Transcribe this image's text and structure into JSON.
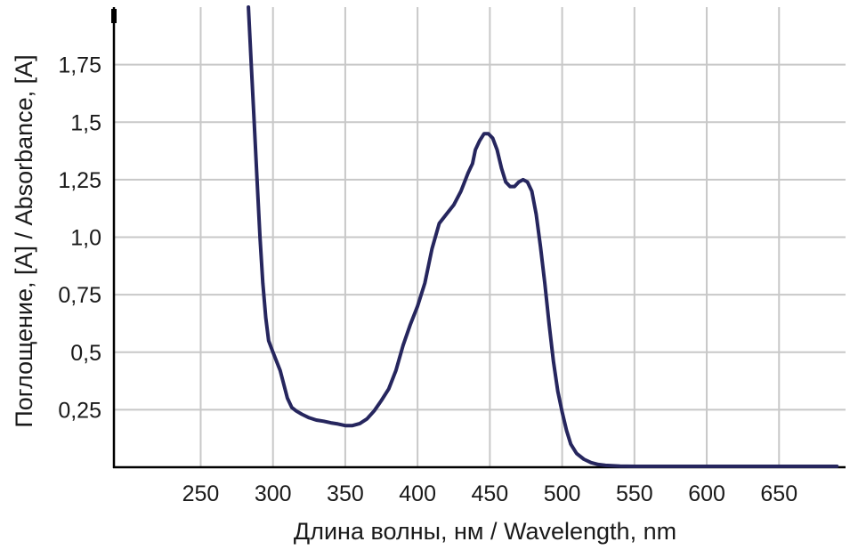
{
  "chart_data": {
    "type": "line",
    "title": "",
    "xlabel": "Длина волны, нм / Wavelength, nm",
    "ylabel": "Поглощение, [A] / Absorbance, [A]",
    "xlim": [
      190,
      696
    ],
    "ylim": [
      0,
      2
    ],
    "x_ticks": [
      250,
      300,
      350,
      400,
      450,
      500,
      550,
      600,
      650
    ],
    "x_tick_labels": [
      "250",
      "300",
      "350",
      "400",
      "450",
      "500",
      "550",
      "600",
      "650"
    ],
    "y_ticks": [
      0.25,
      0.5,
      0.75,
      1.0,
      1.25,
      1.5,
      1.75
    ],
    "y_tick_labels": [
      "0,25",
      "0,5",
      "0,75",
      "1,0",
      "1,25",
      "1,5",
      "1,75"
    ],
    "grid": true,
    "line_color": "#26265e",
    "series": [
      {
        "x": [
          283,
          285,
          287,
          289,
          291,
          293,
          295,
          297,
          300,
          305,
          310,
          313,
          316,
          320,
          325,
          330,
          335,
          340,
          345,
          350,
          355,
          360,
          365,
          370,
          375,
          380,
          385,
          390,
          395,
          400,
          405,
          410,
          415,
          420,
          425,
          430,
          435,
          438,
          440,
          443,
          446,
          449,
          452,
          455,
          458,
          461,
          464,
          467,
          470,
          473,
          476,
          479,
          482,
          485,
          488,
          491,
          494,
          497,
          500,
          503,
          506,
          510,
          515,
          520,
          525,
          530,
          540,
          550,
          600,
          650,
          690
        ],
        "y": [
          2.0,
          1.75,
          1.5,
          1.25,
          1.0,
          0.8,
          0.65,
          0.55,
          0.5,
          0.42,
          0.3,
          0.26,
          0.245,
          0.23,
          0.215,
          0.205,
          0.2,
          0.193,
          0.188,
          0.181,
          0.181,
          0.19,
          0.21,
          0.245,
          0.29,
          0.34,
          0.42,
          0.53,
          0.62,
          0.7,
          0.8,
          0.95,
          1.06,
          1.1,
          1.14,
          1.2,
          1.28,
          1.32,
          1.38,
          1.42,
          1.45,
          1.45,
          1.43,
          1.38,
          1.3,
          1.24,
          1.22,
          1.22,
          1.24,
          1.25,
          1.24,
          1.2,
          1.1,
          0.96,
          0.8,
          0.62,
          0.46,
          0.33,
          0.24,
          0.16,
          0.1,
          0.06,
          0.035,
          0.02,
          0.012,
          0.008,
          0.005,
          0.004,
          0.004,
          0.004,
          0.004
        ]
      }
    ]
  }
}
